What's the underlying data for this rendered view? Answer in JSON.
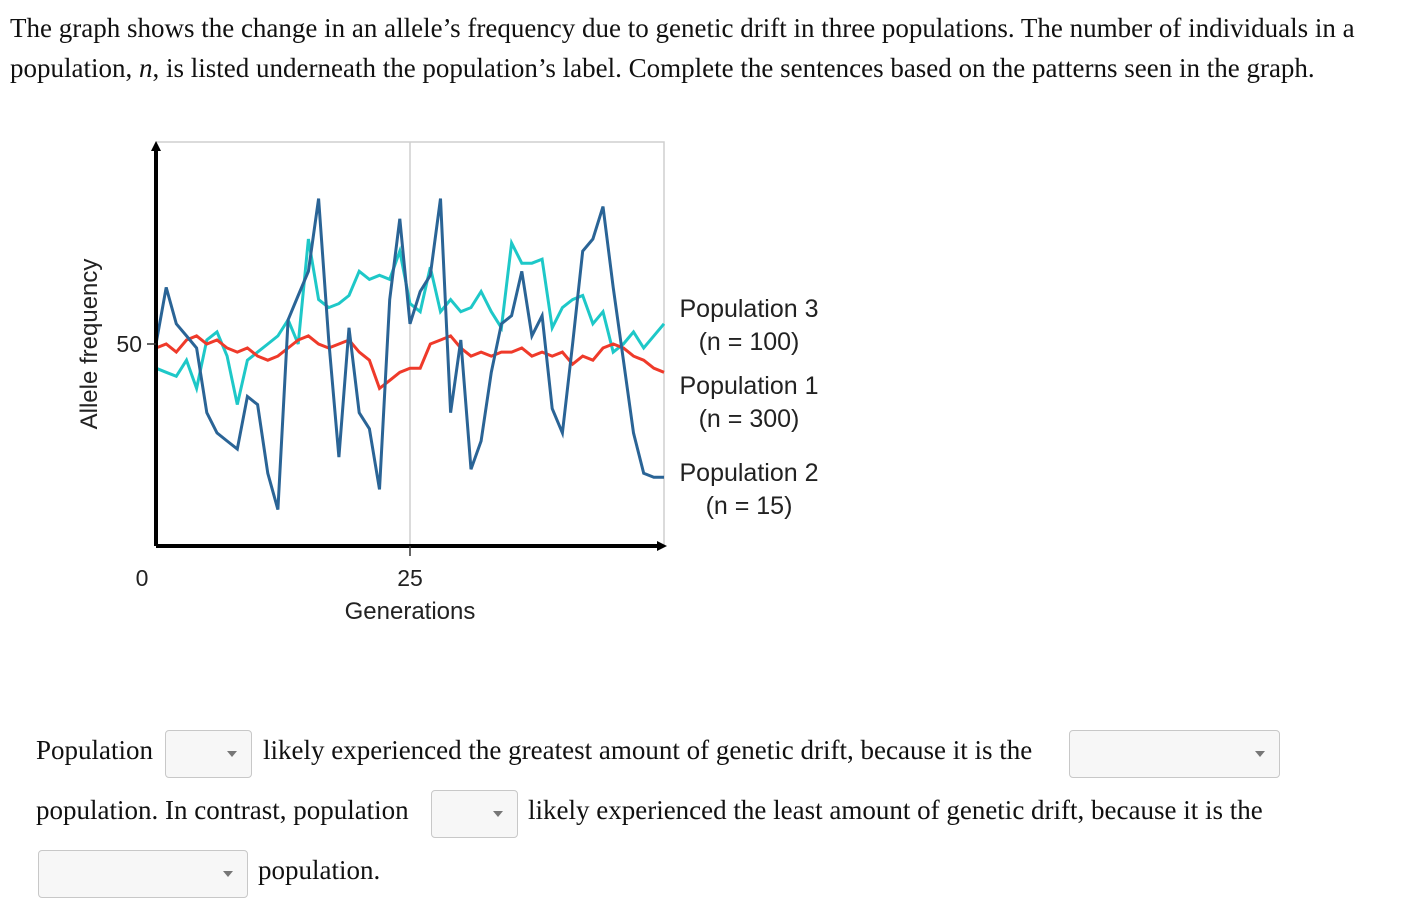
{
  "question": {
    "intro_pre": "The graph shows the change in an allele’s frequency due to genetic drift in three populations. The number of individuals in a population, ",
    "intro_var": "n",
    "intro_post": ", is listed underneath the population’s label. Complete the sentences based on the patterns seen in the graph.",
    "s1": "Population",
    "s2": "likely experienced the greatest amount of genetic drift, because it is the",
    "s3": "population. In contrast, population",
    "s4": "likely experienced the least amount of genetic drift, because it is the",
    "s5": "population.",
    "dropdowns": [
      {
        "id": "pop-greatest",
        "value": ""
      },
      {
        "id": "size-greatest",
        "value": ""
      },
      {
        "id": "pop-least",
        "value": ""
      },
      {
        "id": "size-least",
        "value": ""
      }
    ]
  },
  "chart_data": {
    "type": "line",
    "xlabel": "Generations",
    "ylabel": "Allele frequency",
    "xticks": [
      0,
      25
    ],
    "yticks": [
      50
    ],
    "xlim": [
      0,
      50
    ],
    "ylim": [
      0,
      100
    ],
    "grid": true,
    "legend": "right",
    "series": [
      {
        "name": "Population 3",
        "n_label": "(n = 100)",
        "color": "#1ec8c8",
        "x": [
          0,
          1,
          2,
          3,
          4,
          5,
          6,
          7,
          8,
          9,
          10,
          11,
          12,
          13,
          14,
          15,
          16,
          17,
          18,
          19,
          20,
          21,
          22,
          23,
          24,
          25,
          26,
          27,
          28,
          29,
          30,
          31,
          32,
          33,
          34,
          35,
          36,
          37,
          38,
          39,
          40,
          41,
          42,
          43,
          44,
          45,
          46,
          47,
          48,
          49,
          50
        ],
        "y": [
          44,
          43,
          42,
          46,
          39,
          51,
          53,
          47,
          35,
          46,
          48,
          50,
          52,
          56,
          50,
          76,
          61,
          59,
          60,
          62,
          68,
          66,
          67,
          66,
          73,
          60,
          58,
          69,
          58,
          61,
          58,
          59,
          63,
          58,
          54,
          75,
          70,
          70,
          71,
          54,
          59,
          61,
          62,
          55,
          58,
          48,
          50,
          53,
          49,
          52,
          55
        ]
      },
      {
        "name": "Population 1",
        "n_label": "(n = 300)",
        "color": "#ef3a2a",
        "x": [
          0,
          1,
          2,
          3,
          4,
          5,
          6,
          7,
          8,
          9,
          10,
          11,
          12,
          13,
          14,
          15,
          16,
          17,
          18,
          19,
          20,
          21,
          22,
          23,
          24,
          25,
          26,
          27,
          28,
          29,
          30,
          31,
          32,
          33,
          34,
          35,
          36,
          37,
          38,
          39,
          40,
          41,
          42,
          43,
          44,
          45,
          46,
          47,
          48,
          49,
          50
        ],
        "y": [
          49,
          50,
          48,
          51,
          52,
          50,
          51,
          49,
          48,
          49,
          47,
          46,
          47,
          49,
          51,
          52,
          50,
          49,
          50,
          51,
          48,
          46,
          39,
          41,
          43,
          44,
          44,
          50,
          51,
          52,
          49,
          47,
          48,
          47,
          48,
          48,
          49,
          47,
          48,
          47,
          48,
          45,
          47,
          46,
          49,
          50,
          49,
          47,
          46,
          44,
          43
        ]
      },
      {
        "name": "Population 2",
        "n_label": "(n = 15)",
        "color": "#2a6496",
        "x": [
          0,
          1,
          2,
          3,
          4,
          5,
          6,
          7,
          8,
          9,
          10,
          11,
          12,
          13,
          14,
          15,
          16,
          17,
          18,
          19,
          20,
          21,
          22,
          23,
          24,
          25,
          26,
          27,
          28,
          29,
          30,
          31,
          32,
          33,
          34,
          35,
          36,
          37,
          38,
          39,
          40,
          41,
          42,
          43,
          44,
          45,
          46,
          47,
          48,
          49,
          50
        ],
        "y": [
          50,
          64,
          55,
          52,
          49,
          33,
          28,
          26,
          24,
          37,
          35,
          18,
          9,
          56,
          62,
          68,
          86,
          51,
          22,
          54,
          33,
          29,
          14,
          61,
          81,
          55,
          63,
          67,
          86,
          33,
          51,
          19,
          26,
          43,
          55,
          57,
          68,
          52,
          57,
          34,
          28,
          50,
          73,
          76,
          84,
          64,
          46,
          28,
          18,
          17,
          17
        ]
      }
    ]
  }
}
